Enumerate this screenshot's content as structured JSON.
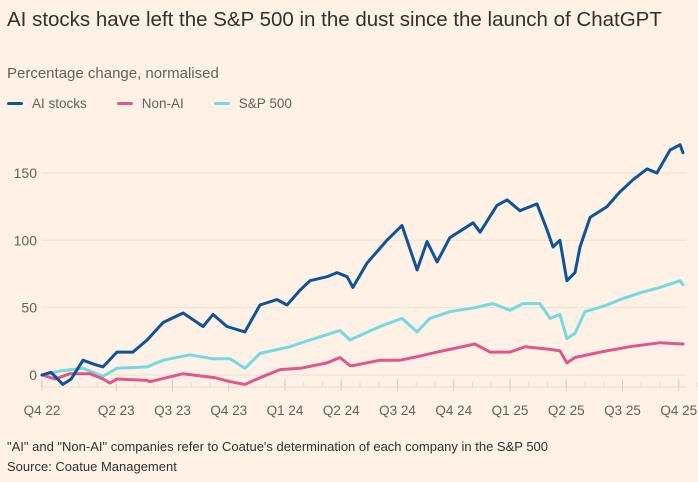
{
  "header": {
    "title": "AI stocks have left the S&P 500 in the dust since the launch of ChatGPT",
    "subtitle": "Percentage change, normalised"
  },
  "footer": {
    "note": "\"AI\" and \"Non-AI\" companies refer to Coatue's determination of each company in the S&P 500",
    "source": "Source: Coatue Management"
  },
  "chart_data": {
    "type": "line",
    "title": "AI stocks have left the S&P 500 in the dust since the launch of ChatGPT",
    "subtitle": "Percentage change, normalised",
    "xlabel": "",
    "ylabel": "",
    "x_units": "decimal year",
    "xlim": [
      2022.92,
      2025.77
    ],
    "ylim": [
      -10,
      175
    ],
    "y_ticks": [
      0,
      50,
      100,
      150
    ],
    "x_ticks": [
      {
        "value": 2022.92,
        "label": "Q4 22"
      },
      {
        "value": 2023.25,
        "label": "Q2 23"
      },
      {
        "value": 2023.5,
        "label": "Q3 23"
      },
      {
        "value": 2023.75,
        "label": "Q4 23"
      },
      {
        "value": 2024.0,
        "label": "Q1 24"
      },
      {
        "value": 2024.25,
        "label": "Q2 24"
      },
      {
        "value": 2024.5,
        "label": "Q3 24"
      },
      {
        "value": 2024.75,
        "label": "Q4 24"
      },
      {
        "value": 2025.0,
        "label": "Q1 25"
      },
      {
        "value": 2025.25,
        "label": "Q2 25"
      },
      {
        "value": 2025.5,
        "label": "Q3 25"
      },
      {
        "value": 2025.75,
        "label": "Q4 25"
      }
    ],
    "grid": true,
    "legend_position": "top-left",
    "series": [
      {
        "name": "AI stocks",
        "color": "#0f5499",
        "points": [
          [
            2022.92,
            0
          ],
          [
            2022.96,
            2
          ],
          [
            2023.013,
            -7
          ],
          [
            2023.05,
            -3
          ],
          [
            2023.102,
            11
          ],
          [
            2023.15,
            8
          ],
          [
            2023.191,
            6
          ],
          [
            2023.253,
            17
          ],
          [
            2023.324,
            17
          ],
          [
            2023.387,
            26
          ],
          [
            2023.458,
            39
          ],
          [
            2023.547,
            46
          ],
          [
            2023.636,
            36
          ],
          [
            2023.68,
            45
          ],
          [
            2023.742,
            36
          ],
          [
            2023.822,
            32
          ],
          [
            2023.889,
            52
          ],
          [
            2023.964,
            56
          ],
          [
            2024.009,
            52
          ],
          [
            2024.067,
            63
          ],
          [
            2024.111,
            70
          ],
          [
            2024.187,
            73
          ],
          [
            2024.231,
            76
          ],
          [
            2024.276,
            73
          ],
          [
            2024.302,
            65
          ],
          [
            2024.364,
            83
          ],
          [
            2024.453,
            100
          ],
          [
            2024.52,
            111
          ],
          [
            2024.587,
            78
          ],
          [
            2024.631,
            99
          ],
          [
            2024.676,
            84
          ],
          [
            2024.733,
            102
          ],
          [
            2024.836,
            113
          ],
          [
            2024.867,
            106
          ],
          [
            2024.942,
            126
          ],
          [
            2024.987,
            130
          ],
          [
            2025.044,
            122
          ],
          [
            2025.12,
            127
          ],
          [
            2025.164,
            108
          ],
          [
            2025.191,
            95
          ],
          [
            2025.222,
            100
          ],
          [
            2025.253,
            70
          ],
          [
            2025.289,
            76
          ],
          [
            2025.311,
            95
          ],
          [
            2025.356,
            117
          ],
          [
            2025.431,
            125
          ],
          [
            2025.489,
            136
          ],
          [
            2025.547,
            145
          ],
          [
            2025.609,
            153
          ],
          [
            2025.653,
            150
          ],
          [
            2025.711,
            167
          ],
          [
            2025.756,
            171
          ],
          [
            2025.769,
            165
          ]
        ]
      },
      {
        "name": "Non-AI",
        "color": "#e0578a",
        "points": [
          [
            2022.92,
            0
          ],
          [
            2022.978,
            -3
          ],
          [
            2023.044,
            1
          ],
          [
            2023.133,
            1
          ],
          [
            2023.191,
            -3
          ],
          [
            2023.222,
            -6
          ],
          [
            2023.253,
            -3
          ],
          [
            2023.387,
            -4
          ],
          [
            2023.4,
            -5
          ],
          [
            2023.547,
            1
          ],
          [
            2023.689,
            -2
          ],
          [
            2023.756,
            -5
          ],
          [
            2023.822,
            -7
          ],
          [
            2023.889,
            -2
          ],
          [
            2023.978,
            4
          ],
          [
            2024.067,
            5
          ],
          [
            2024.187,
            9
          ],
          [
            2024.244,
            13
          ],
          [
            2024.289,
            7
          ],
          [
            2024.302,
            7
          ],
          [
            2024.422,
            11
          ],
          [
            2024.511,
            11
          ],
          [
            2024.6,
            14
          ],
          [
            2024.676,
            17
          ],
          [
            2024.733,
            19
          ],
          [
            2024.844,
            23
          ],
          [
            2024.911,
            17
          ],
          [
            2025.0,
            17
          ],
          [
            2025.067,
            21
          ],
          [
            2025.178,
            19
          ],
          [
            2025.222,
            18
          ],
          [
            2025.253,
            9
          ],
          [
            2025.289,
            13
          ],
          [
            2025.4,
            17
          ],
          [
            2025.533,
            21
          ],
          [
            2025.667,
            24
          ],
          [
            2025.769,
            23
          ]
        ]
      },
      {
        "name": "S&P 500",
        "color": "#75d9e4",
        "points": [
          [
            2022.92,
            0
          ],
          [
            2023.0,
            3
          ],
          [
            2023.102,
            5
          ],
          [
            2023.191,
            -1
          ],
          [
            2023.253,
            5
          ],
          [
            2023.387,
            6
          ],
          [
            2023.458,
            11
          ],
          [
            2023.578,
            15
          ],
          [
            2023.68,
            12
          ],
          [
            2023.756,
            12
          ],
          [
            2023.822,
            5
          ],
          [
            2023.889,
            16
          ],
          [
            2024.022,
            21
          ],
          [
            2024.111,
            26
          ],
          [
            2024.187,
            30
          ],
          [
            2024.244,
            33
          ],
          [
            2024.289,
            26
          ],
          [
            2024.302,
            27
          ],
          [
            2024.422,
            36
          ],
          [
            2024.52,
            42
          ],
          [
            2024.587,
            32
          ],
          [
            2024.644,
            42
          ],
          [
            2024.733,
            47
          ],
          [
            2024.844,
            50
          ],
          [
            2024.924,
            53
          ],
          [
            2025.0,
            48
          ],
          [
            2025.058,
            53
          ],
          [
            2025.133,
            53
          ],
          [
            2025.178,
            42
          ],
          [
            2025.222,
            45
          ],
          [
            2025.253,
            27
          ],
          [
            2025.289,
            31
          ],
          [
            2025.333,
            47
          ],
          [
            2025.431,
            52
          ],
          [
            2025.489,
            56
          ],
          [
            2025.578,
            61
          ],
          [
            2025.667,
            65
          ],
          [
            2025.756,
            70
          ],
          [
            2025.769,
            67
          ]
        ]
      }
    ]
  }
}
